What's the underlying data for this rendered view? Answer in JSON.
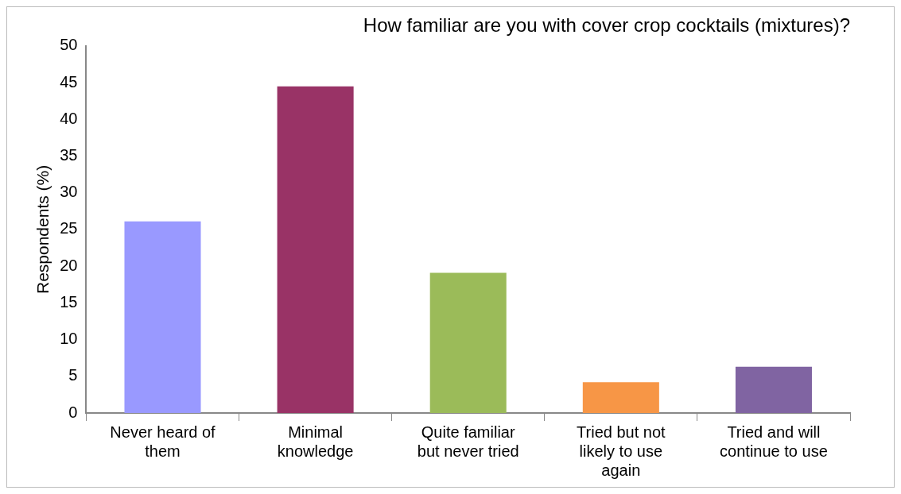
{
  "chart_data": {
    "type": "bar",
    "title": "How familiar are you with cover crop cocktails (mixtures)?",
    "ylabel": "Respondents (%)",
    "categories": [
      "Never heard of them",
      "Minimal knowledge",
      "Quite familiar but never tried",
      "Tried but not likely to use again",
      "Tried and will continue to use"
    ],
    "values": [
      26.1,
      44.5,
      19.1,
      4.2,
      6.3
    ],
    "colors": [
      "#9999ff",
      "#993366",
      "#9bbb59",
      "#f79646",
      "#8064a2"
    ],
    "ylim": [
      0,
      50
    ],
    "yticks": [
      0,
      5,
      10,
      15,
      20,
      25,
      30,
      35,
      40,
      45,
      50
    ],
    "grid": false,
    "legend": false
  }
}
